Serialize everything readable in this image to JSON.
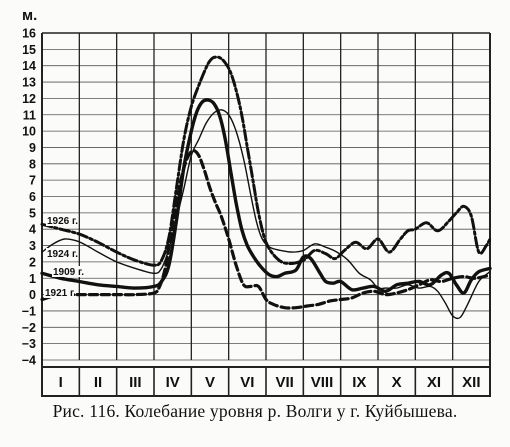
{
  "figure": {
    "caption": "Рис. 116. Колебание уровня р. Волги у г. Куйбышева."
  },
  "chart_data": {
    "type": "line",
    "title": "",
    "xlabel": "",
    "ylabel": "м.",
    "ylim": [
      -4,
      16
    ],
    "yticks": [
      16,
      15,
      14,
      13,
      12,
      11,
      10,
      9,
      8,
      7,
      6,
      5,
      4,
      3,
      2,
      1,
      0,
      -1,
      -2,
      -3,
      -4
    ],
    "ytick_labels": [
      "16",
      "15",
      "14",
      "13",
      "12",
      "11",
      "10",
      "9",
      "8",
      "7",
      "6",
      "5",
      "4",
      "3",
      "2",
      "1",
      "0",
      "−1",
      "−2",
      "−3",
      "−4"
    ],
    "xlim": [
      0,
      12
    ],
    "x_unit": "months",
    "categories": [
      "I",
      "II",
      "III",
      "IV",
      "V",
      "VI",
      "VII",
      "VIII",
      "IX",
      "X",
      "XI",
      "XII"
    ],
    "grid": true,
    "series": [
      {
        "name": "1926 г.",
        "style": "dash-dot",
        "color": "#111111",
        "x": [
          0,
          0.5,
          1.0,
          1.5,
          2.0,
          2.5,
          3.0,
          3.2,
          3.4,
          3.6,
          3.8,
          4.0,
          4.2,
          4.4,
          4.5,
          4.6,
          4.75,
          4.9,
          5.05,
          5.2,
          5.35,
          5.5,
          5.65,
          5.8,
          6.0,
          6.3,
          6.6,
          7.0,
          7.3,
          7.6,
          7.85,
          8.1,
          8.4,
          8.7,
          9.0,
          9.3,
          9.6,
          9.8,
          10.0,
          10.3,
          10.6,
          10.9,
          11.1,
          11.3,
          11.5,
          11.7,
          11.9,
          12.0
        ],
        "y": [
          4.3,
          4.0,
          3.7,
          3.2,
          2.6,
          2.1,
          1.8,
          2.1,
          3.5,
          6.5,
          9.5,
          11.5,
          12.8,
          13.9,
          14.3,
          14.5,
          14.5,
          14.2,
          13.6,
          12.5,
          11.0,
          9.0,
          7.0,
          5.0,
          3.2,
          2.2,
          1.9,
          2.1,
          2.7,
          2.5,
          2.2,
          2.7,
          3.2,
          2.8,
          3.4,
          2.6,
          3.4,
          3.9,
          4.0,
          4.4,
          3.9,
          4.5,
          5.0,
          5.4,
          4.8,
          2.6,
          3.0,
          3.4
        ]
      },
      {
        "name": "1924 г.",
        "style": "solid-thin",
        "color": "#111111",
        "x": [
          0,
          0.3,
          0.6,
          0.9,
          1.2,
          1.5,
          2.0,
          2.5,
          3.0,
          3.2,
          3.4,
          3.6,
          3.8,
          4.0,
          4.2,
          4.4,
          4.6,
          4.8,
          5.0,
          5.2,
          5.4,
          5.6,
          5.75,
          5.9,
          6.1,
          6.4,
          6.7,
          7.0,
          7.3,
          7.6,
          7.9,
          8.2,
          8.5,
          8.8,
          9.0,
          9.2,
          9.5,
          9.8,
          10.1,
          10.4,
          10.6,
          10.8,
          11.0,
          11.2,
          11.4,
          11.7,
          12.0
        ],
        "y": [
          2.6,
          3.1,
          3.4,
          3.3,
          3.0,
          2.6,
          2.0,
          1.6,
          1.3,
          1.6,
          2.8,
          4.6,
          6.5,
          8.5,
          9.5,
          10.5,
          11.1,
          11.3,
          11.0,
          10.0,
          8.3,
          6.0,
          4.4,
          3.4,
          2.9,
          2.7,
          2.6,
          2.7,
          3.1,
          2.9,
          2.6,
          2.1,
          1.3,
          0.9,
          0.4,
          0.4,
          0.4,
          0.6,
          0.4,
          0.5,
          0.2,
          -0.5,
          -1.3,
          -1.4,
          -0.6,
          0.8,
          1.4
        ]
      },
      {
        "name": "1909 г.",
        "style": "solid-bold",
        "color": "#111111",
        "x": [
          0,
          0.5,
          1.0,
          1.5,
          2.0,
          2.5,
          3.0,
          3.2,
          3.4,
          3.6,
          3.8,
          4.0,
          4.15,
          4.3,
          4.45,
          4.6,
          4.75,
          4.9,
          5.05,
          5.2,
          5.35,
          5.5,
          5.7,
          5.9,
          6.1,
          6.3,
          6.5,
          6.8,
          7.0,
          7.2,
          7.45,
          7.6,
          7.8,
          8.0,
          8.3,
          8.6,
          8.9,
          9.2,
          9.5,
          9.8,
          10.1,
          10.4,
          10.7,
          10.9,
          11.1,
          11.3,
          11.5,
          11.7,
          12.0
        ],
        "y": [
          1.3,
          1.0,
          0.8,
          0.6,
          0.5,
          0.4,
          0.5,
          0.8,
          1.8,
          4.5,
          7.8,
          10.0,
          11.2,
          11.8,
          11.9,
          11.7,
          11.0,
          9.6,
          7.6,
          5.6,
          4.0,
          3.0,
          2.2,
          1.6,
          1.2,
          1.1,
          1.3,
          1.5,
          2.3,
          2.2,
          1.3,
          0.8,
          0.7,
          0.8,
          0.3,
          0.4,
          0.5,
          0.2,
          0.6,
          0.7,
          0.8,
          0.6,
          1.2,
          1.3,
          0.6,
          0.1,
          0.9,
          1.4,
          1.6
        ]
      },
      {
        "name": "1921 г.",
        "style": "dashed-bold",
        "color": "#111111",
        "x": [
          0,
          0.3,
          0.6,
          1.0,
          1.5,
          2.0,
          2.5,
          3.0,
          3.15,
          3.3,
          3.45,
          3.6,
          3.75,
          3.9,
          4.05,
          4.2,
          4.35,
          4.5,
          4.65,
          4.8,
          5.0,
          5.2,
          5.4,
          5.6,
          5.8,
          6.0,
          6.2,
          6.5,
          6.8,
          7.1,
          7.4,
          7.7,
          8.0,
          8.3,
          8.6,
          8.9,
          9.2,
          9.5,
          9.8,
          10.1,
          10.4,
          10.7,
          11.0,
          11.3,
          11.6,
          12.0
        ],
        "y": [
          -0.3,
          -0.1,
          0.0,
          0.0,
          0.0,
          0.0,
          0.0,
          0.1,
          0.5,
          1.6,
          3.6,
          5.6,
          7.3,
          8.4,
          8.8,
          8.5,
          7.6,
          6.5,
          5.6,
          4.8,
          3.4,
          1.8,
          0.6,
          0.5,
          0.5,
          -0.3,
          -0.6,
          -0.8,
          -0.8,
          -0.7,
          -0.6,
          -0.4,
          -0.3,
          -0.2,
          0.1,
          0.2,
          0.0,
          0.1,
          0.3,
          0.6,
          0.9,
          0.8,
          1.0,
          1.1,
          1.0,
          1.2
        ]
      }
    ]
  }
}
